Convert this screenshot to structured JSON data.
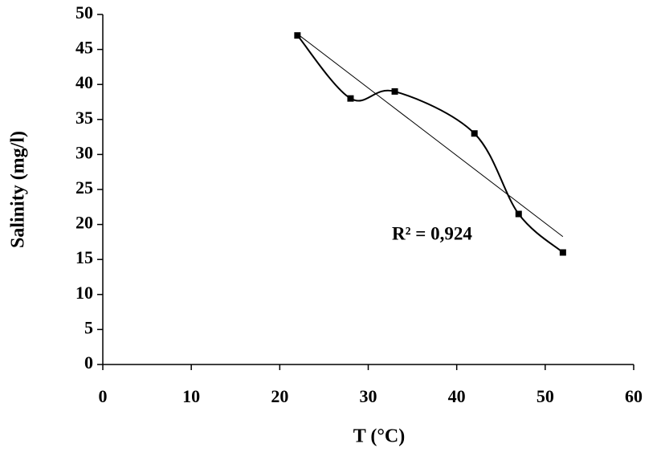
{
  "chart_data": {
    "type": "scatter",
    "x_label": "T (°C)",
    "y_label": "Salinity (mg/l)",
    "x": [
      22,
      28,
      33,
      42,
      47,
      52
    ],
    "values": [
      47,
      38,
      39,
      33,
      21.5,
      16
    ],
    "color": "#000000",
    "marker": "square",
    "smooth": true,
    "trendline": "linear",
    "annotation": "R² = 0,924",
    "xlim": [
      0,
      60
    ],
    "xticks": [
      0,
      10,
      20,
      30,
      40,
      50,
      60
    ],
    "ylim": [
      0,
      50
    ],
    "yticks": [
      0,
      5,
      10,
      15,
      20,
      25,
      30,
      35,
      40,
      45,
      50
    ],
    "grid": false
  }
}
